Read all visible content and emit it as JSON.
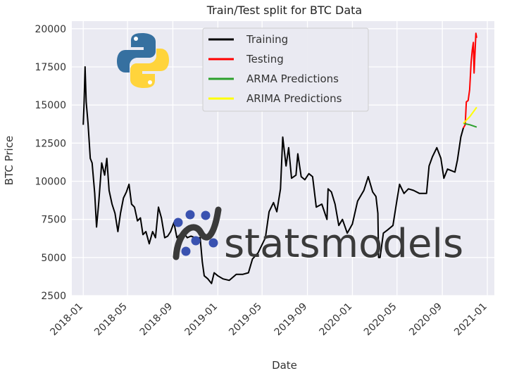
{
  "chart_data": {
    "type": "line",
    "title": "Train/Test split for BTC Data",
    "xlabel": "Date",
    "ylabel": "BTC Price",
    "x_ticks": [
      "2018-01",
      "2018-05",
      "2018-09",
      "2019-01",
      "2019-05",
      "2019-09",
      "2020-01",
      "2020-05",
      "2020-09",
      "2021-01"
    ],
    "y_ticks": [
      2500,
      5000,
      7500,
      10000,
      12500,
      15000,
      17500,
      20000
    ],
    "xlim": [
      "2017-12-01",
      "2021-01-20"
    ],
    "ylim": [
      2500,
      20500
    ],
    "grid": true,
    "legend_position": "top-center",
    "series": [
      {
        "name": "Training",
        "color": "#000000",
        "points": [
          [
            "2018-01-01",
            13700
          ],
          [
            "2018-01-03",
            15000
          ],
          [
            "2018-01-06",
            17500
          ],
          [
            "2018-01-09",
            15200
          ],
          [
            "2018-01-14",
            13800
          ],
          [
            "2018-01-20",
            11500
          ],
          [
            "2018-01-25",
            11200
          ],
          [
            "2018-02-01",
            9200
          ],
          [
            "2018-02-06",
            7000
          ],
          [
            "2018-02-12",
            8600
          ],
          [
            "2018-02-20",
            11200
          ],
          [
            "2018-02-28",
            10400
          ],
          [
            "2018-03-06",
            11500
          ],
          [
            "2018-03-12",
            9400
          ],
          [
            "2018-03-20",
            8500
          ],
          [
            "2018-03-28",
            7900
          ],
          [
            "2018-04-05",
            6700
          ],
          [
            "2018-04-12",
            7900
          ],
          [
            "2018-04-20",
            8900
          ],
          [
            "2018-04-28",
            9300
          ],
          [
            "2018-05-05",
            9800
          ],
          [
            "2018-05-12",
            8500
          ],
          [
            "2018-05-20",
            8300
          ],
          [
            "2018-05-28",
            7400
          ],
          [
            "2018-06-05",
            7600
          ],
          [
            "2018-06-12",
            6500
          ],
          [
            "2018-06-20",
            6700
          ],
          [
            "2018-06-29",
            5900
          ],
          [
            "2018-07-08",
            6700
          ],
          [
            "2018-07-16",
            6300
          ],
          [
            "2018-07-24",
            8300
          ],
          [
            "2018-08-01",
            7600
          ],
          [
            "2018-08-10",
            6300
          ],
          [
            "2018-08-18",
            6400
          ],
          [
            "2018-08-26",
            6700
          ],
          [
            "2018-09-04",
            7300
          ],
          [
            "2018-09-12",
            6300
          ],
          [
            "2018-09-20",
            6500
          ],
          [
            "2018-10-01",
            6600
          ],
          [
            "2018-10-10",
            6300
          ],
          [
            "2018-10-20",
            6400
          ],
          [
            "2018-11-01",
            6300
          ],
          [
            "2018-11-14",
            6300
          ],
          [
            "2018-11-20",
            4700
          ],
          [
            "2018-11-25",
            3800
          ],
          [
            "2018-12-05",
            3600
          ],
          [
            "2018-12-15",
            3300
          ],
          [
            "2018-12-22",
            4000
          ],
          [
            "2019-01-01",
            3800
          ],
          [
            "2019-01-15",
            3600
          ],
          [
            "2019-02-01",
            3500
          ],
          [
            "2019-02-20",
            3900
          ],
          [
            "2019-03-10",
            3900
          ],
          [
            "2019-03-25",
            4000
          ],
          [
            "2019-04-05",
            4900
          ],
          [
            "2019-04-20",
            5300
          ],
          [
            "2019-05-10",
            6300
          ],
          [
            "2019-05-20",
            8000
          ],
          [
            "2019-06-01",
            8600
          ],
          [
            "2019-06-10",
            8000
          ],
          [
            "2019-06-20",
            9500
          ],
          [
            "2019-06-26",
            12900
          ],
          [
            "2019-07-05",
            11000
          ],
          [
            "2019-07-12",
            12200
          ],
          [
            "2019-07-20",
            10200
          ],
          [
            "2019-08-01",
            10400
          ],
          [
            "2019-08-06",
            11800
          ],
          [
            "2019-08-15",
            10300
          ],
          [
            "2019-08-25",
            10100
          ],
          [
            "2019-09-05",
            10500
          ],
          [
            "2019-09-15",
            10300
          ],
          [
            "2019-09-25",
            8300
          ],
          [
            "2019-10-10",
            8500
          ],
          [
            "2019-10-24",
            7500
          ],
          [
            "2019-10-27",
            9500
          ],
          [
            "2019-11-05",
            9300
          ],
          [
            "2019-11-15",
            8500
          ],
          [
            "2019-11-25",
            7100
          ],
          [
            "2019-12-05",
            7500
          ],
          [
            "2019-12-18",
            6600
          ],
          [
            "2020-01-01",
            7200
          ],
          [
            "2020-01-15",
            8700
          ],
          [
            "2020-02-01",
            9400
          ],
          [
            "2020-02-13",
            10300
          ],
          [
            "2020-02-25",
            9300
          ],
          [
            "2020-03-05",
            9000
          ],
          [
            "2020-03-10",
            7900
          ],
          [
            "2020-03-12",
            5000
          ],
          [
            "2020-03-16",
            5000
          ],
          [
            "2020-03-25",
            6600
          ],
          [
            "2020-04-05",
            6800
          ],
          [
            "2020-04-20",
            7100
          ],
          [
            "2020-05-01",
            8800
          ],
          [
            "2020-05-08",
            9800
          ],
          [
            "2020-05-20",
            9200
          ],
          [
            "2020-06-01",
            9500
          ],
          [
            "2020-06-15",
            9400
          ],
          [
            "2020-07-01",
            9200
          ],
          [
            "2020-07-20",
            9200
          ],
          [
            "2020-07-27",
            11000
          ],
          [
            "2020-08-05",
            11600
          ],
          [
            "2020-08-17",
            12200
          ],
          [
            "2020-08-28",
            11500
          ],
          [
            "2020-09-05",
            10200
          ],
          [
            "2020-09-15",
            10800
          ],
          [
            "2020-09-25",
            10700
          ],
          [
            "2020-10-05",
            10600
          ],
          [
            "2020-10-12",
            11400
          ],
          [
            "2020-10-21",
            12900
          ],
          [
            "2020-10-28",
            13500
          ]
        ]
      },
      {
        "name": "Testing",
        "color": "#ff0000",
        "points": [
          [
            "2020-10-28",
            13500
          ],
          [
            "2020-11-02",
            13700
          ],
          [
            "2020-11-05",
            15200
          ],
          [
            "2020-11-10",
            15300
          ],
          [
            "2020-11-14",
            16000
          ],
          [
            "2020-11-18",
            17800
          ],
          [
            "2020-11-21",
            18600
          ],
          [
            "2020-11-24",
            19100
          ],
          [
            "2020-11-26",
            17100
          ],
          [
            "2020-11-28",
            18200
          ],
          [
            "2020-12-01",
            19700
          ],
          [
            "2020-12-03",
            19400
          ]
        ]
      },
      {
        "name": "ARMA Predictions",
        "color": "#2ca02c",
        "points": [
          [
            "2020-10-28",
            13800
          ],
          [
            "2020-11-15",
            13700
          ],
          [
            "2020-12-03",
            13550
          ]
        ]
      },
      {
        "name": "ARIMA Predictions",
        "color": "#ffff00",
        "points": [
          [
            "2020-10-28",
            13800
          ],
          [
            "2020-11-15",
            14250
          ],
          [
            "2020-12-03",
            14850
          ]
        ]
      }
    ]
  },
  "overlay": {
    "python_logo_label": "python-logo",
    "statsmodels_text": "statsmodels",
    "python_blue": "#3670A0",
    "python_yellow": "#FFD43B",
    "statsmodels_dot_color": "#3a52b0"
  }
}
